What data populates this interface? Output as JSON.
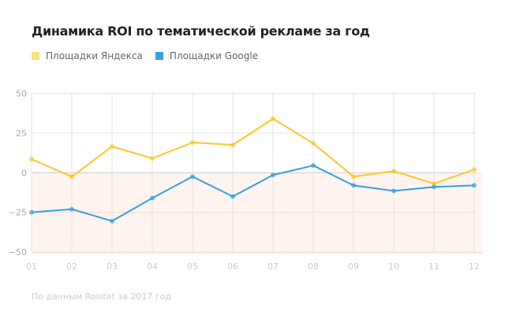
{
  "chart_data": {
    "type": "line",
    "title": "Динамика ROI по тематической рекламе за год",
    "categories": [
      "01",
      "02",
      "03",
      "04",
      "05",
      "06",
      "07",
      "08",
      "09",
      "10",
      "11",
      "12"
    ],
    "series": [
      {
        "name": "Площадки Яндекса",
        "color": "#fcc72a",
        "values": [
          8.5,
          -2.5,
          16.5,
          9,
          19,
          17.5,
          34,
          18.5,
          -2.5,
          1,
          -7,
          2
        ]
      },
      {
        "name": "Площадки Google",
        "color": "#35a0e0",
        "values": [
          -25,
          -23,
          -30.5,
          -16,
          -2.5,
          -15,
          -1.5,
          4.5,
          -8,
          -11.5,
          -9,
          -8
        ]
      }
    ],
    "yticks": [
      "50",
      "25",
      "0",
      "−25",
      "−50"
    ],
    "ylim": [
      -50,
      50
    ],
    "grid": true,
    "negative_fill_color": "#fff4ef",
    "legend_position": "top-left",
    "source": "По данным Roistat за 2017 год"
  }
}
